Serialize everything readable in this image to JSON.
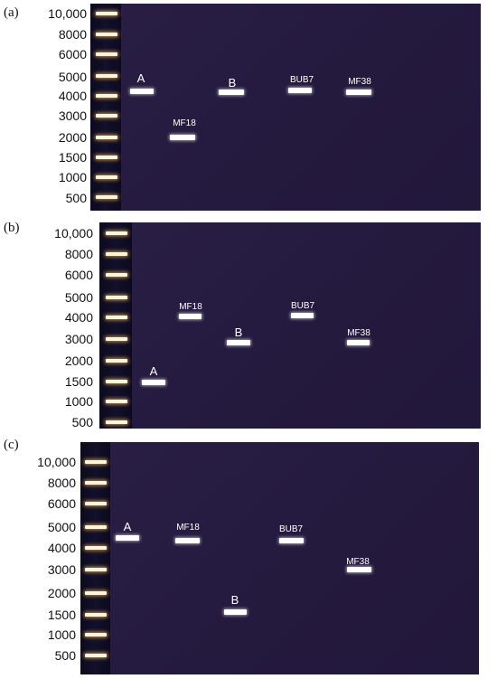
{
  "panels": [
    {
      "label": "(a)",
      "ladder": [
        "10,000",
        "8000",
        "6000",
        "5000",
        "4000",
        "3000",
        "2000",
        "1500",
        "1000",
        "500"
      ],
      "lanes": [
        {
          "name": "A",
          "band_bp": 4300
        },
        {
          "name": "MF18",
          "band_bp": 2000
        },
        {
          "name": "B",
          "band_bp": 4150
        },
        {
          "name": "BUB7",
          "band_bp": 4250
        },
        {
          "name": "MF38",
          "band_bp": 4150
        }
      ]
    },
    {
      "label": "(b)",
      "ladder": [
        "10,000",
        "8000",
        "6000",
        "5000",
        "4000",
        "3000",
        "2000",
        "1500",
        "1000",
        "500"
      ],
      "lanes": [
        {
          "name": "A",
          "band_bp": 1500
        },
        {
          "name": "MF18",
          "band_bp": 4050
        },
        {
          "name": "B",
          "band_bp": 2900
        },
        {
          "name": "BUB7",
          "band_bp": 4050
        },
        {
          "name": "MF38",
          "band_bp": 2900
        }
      ]
    },
    {
      "label": "(c)",
      "ladder": [
        "10,000",
        "8000",
        "6000",
        "5000",
        "4000",
        "3000",
        "2000",
        "1500",
        "1000",
        "500"
      ],
      "lanes": [
        {
          "name": "A",
          "band_bp": 4500
        },
        {
          "name": "MF18",
          "band_bp": 4400
        },
        {
          "name": "B",
          "band_bp": 1600
        },
        {
          "name": "BUB7",
          "band_bp": 4400
        },
        {
          "name": "MF38",
          "band_bp": 3000
        }
      ]
    }
  ]
}
